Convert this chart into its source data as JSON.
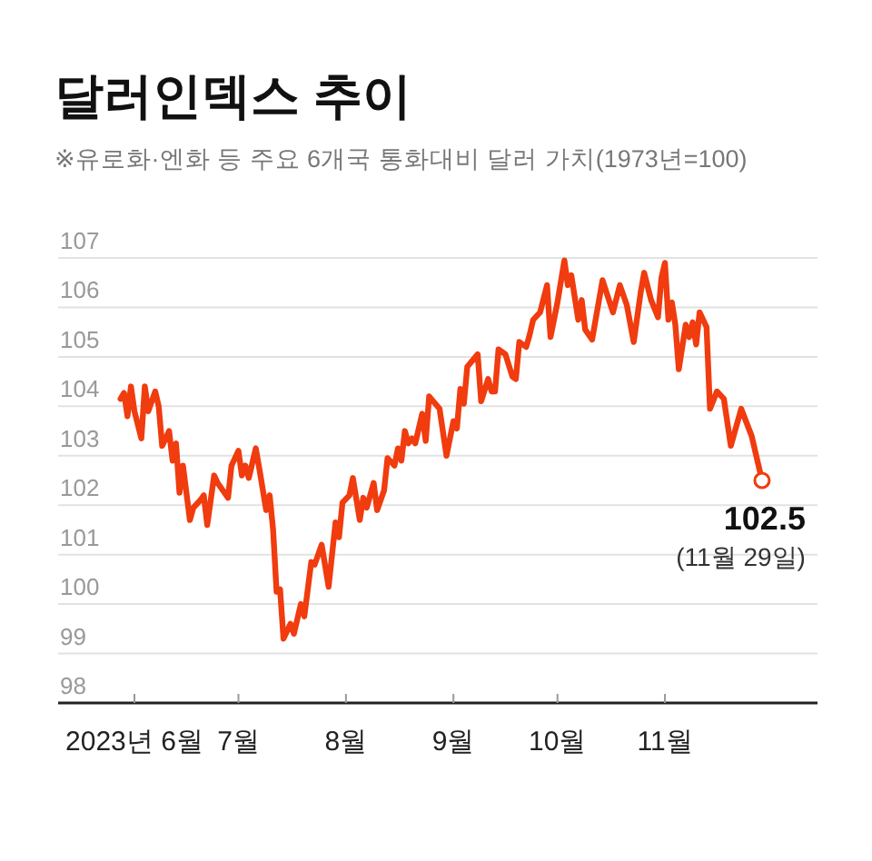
{
  "chart_data": {
    "type": "line",
    "title": "달러인덱스 추이",
    "subtitle": "※유로화·엔화 등 주요 6개국 통화대비 달러 가치(1973년=100)",
    "x": [
      "2023-05-28",
      "2023-05-29",
      "2023-05-30",
      "2023-05-31",
      "2023-06-01",
      "2023-06-03",
      "2023-06-04",
      "2023-06-05",
      "2023-06-07",
      "2023-06-08",
      "2023-06-09",
      "2023-06-11",
      "2023-06-12",
      "2023-06-13",
      "2023-06-14",
      "2023-06-15",
      "2023-06-17",
      "2023-06-18",
      "2023-06-20",
      "2023-06-21",
      "2023-06-22",
      "2023-06-24",
      "2023-06-25",
      "2023-06-28",
      "2023-06-29",
      "2023-07-01",
      "2023-07-02",
      "2023-07-03",
      "2023-07-04",
      "2023-07-06",
      "2023-07-07",
      "2023-07-09",
      "2023-07-10",
      "2023-07-11",
      "2023-07-12",
      "2023-07-13",
      "2023-07-14",
      "2023-07-16",
      "2023-07-17",
      "2023-07-19",
      "2023-07-20",
      "2023-07-22",
      "2023-07-23",
      "2023-07-25",
      "2023-07-27",
      "2023-07-29",
      "2023-07-30",
      "2023-07-31",
      "2023-08-02",
      "2023-08-03",
      "2023-08-05",
      "2023-08-06",
      "2023-08-07",
      "2023-08-09",
      "2023-08-10",
      "2023-08-12",
      "2023-08-13",
      "2023-08-15",
      "2023-08-16",
      "2023-08-17",
      "2023-08-18",
      "2023-08-19",
      "2023-08-20",
      "2023-08-21",
      "2023-08-23",
      "2023-08-24",
      "2023-08-25",
      "2023-08-28",
      "2023-08-30",
      "2023-09-01",
      "2023-09-02",
      "2023-09-03",
      "2023-09-04",
      "2023-09-05",
      "2023-09-08",
      "2023-09-09",
      "2023-09-11",
      "2023-09-12",
      "2023-09-13",
      "2023-09-14",
      "2023-09-16",
      "2023-09-18",
      "2023-09-19",
      "2023-09-20",
      "2023-09-22",
      "2023-09-23",
      "2023-09-24",
      "2023-09-26",
      "2023-09-28",
      "2023-09-29",
      "2023-10-01",
      "2023-10-03",
      "2023-10-04",
      "2023-10-05",
      "2023-10-07",
      "2023-10-08",
      "2023-10-09",
      "2023-10-11",
      "2023-10-14",
      "2023-10-17",
      "2023-10-19",
      "2023-10-21",
      "2023-10-23",
      "2023-10-25",
      "2023-10-26",
      "2023-10-28",
      "2023-10-30",
      "2023-10-31",
      "2023-11-01",
      "2023-11-02",
      "2023-11-03",
      "2023-11-04",
      "2023-11-05",
      "2023-11-07",
      "2023-11-08",
      "2023-11-09",
      "2023-11-10",
      "2023-11-11",
      "2023-11-13",
      "2023-11-14",
      "2023-11-16",
      "2023-11-18",
      "2023-11-20",
      "2023-11-23",
      "2023-11-26",
      "2023-11-29"
    ],
    "series": [
      {
        "color": "#f03c0f",
        "values": [
          104.15,
          104.27,
          103.8,
          104.4,
          103.9,
          103.35,
          104.4,
          103.9,
          104.3,
          104.0,
          103.2,
          103.5,
          102.9,
          103.25,
          102.25,
          102.8,
          101.7,
          101.95,
          102.1,
          102.2,
          101.6,
          102.6,
          102.45,
          102.15,
          102.8,
          103.1,
          102.6,
          102.8,
          102.55,
          103.15,
          102.75,
          101.9,
          102.2,
          101.5,
          100.25,
          100.3,
          99.3,
          99.6,
          99.4,
          100.0,
          99.75,
          100.85,
          100.8,
          101.2,
          100.35,
          101.65,
          101.35,
          102.05,
          102.2,
          102.55,
          101.7,
          102.15,
          101.95,
          102.45,
          101.9,
          102.3,
          102.95,
          102.8,
          103.15,
          102.9,
          103.5,
          103.25,
          103.35,
          103.25,
          103.85,
          103.3,
          104.2,
          103.95,
          103.0,
          103.7,
          103.55,
          104.35,
          104.05,
          104.8,
          105.05,
          104.1,
          104.55,
          104.3,
          104.3,
          105.15,
          105.05,
          104.6,
          104.55,
          105.3,
          105.2,
          105.45,
          105.75,
          105.9,
          106.45,
          105.4,
          106.1,
          106.95,
          106.45,
          106.65,
          105.75,
          106.15,
          105.55,
          105.35,
          106.55,
          105.9,
          106.45,
          106.05,
          105.3,
          106.3,
          106.7,
          106.15,
          105.8,
          106.6,
          106.9,
          105.75,
          106.1,
          105.65,
          104.75,
          105.65,
          105.4,
          105.7,
          105.25,
          105.9,
          105.6,
          103.95,
          104.3,
          104.15,
          103.2,
          103.95,
          103.4,
          102.5
        ]
      },
      {
        "type": "scatter",
        "color": "#f03c0f",
        "marker": "circle",
        "x": [
          "2023-11-29"
        ],
        "values": [
          102.5
        ]
      }
    ],
    "xlim": [
      "2023-05-10",
      "2023-12-15"
    ],
    "xticks": [
      {
        "value": "2023-06-01",
        "label": "2023년 6월"
      },
      {
        "value": "2023-07-01",
        "label": "7월"
      },
      {
        "value": "2023-08-01",
        "label": "8월"
      },
      {
        "value": "2023-09-01",
        "label": "9월"
      },
      {
        "value": "2023-10-01",
        "label": "10월"
      },
      {
        "value": "2023-11-01",
        "label": "11월"
      }
    ],
    "ylim": [
      98,
      107
    ],
    "yticks": [
      98,
      99,
      100,
      101,
      102,
      103,
      104,
      105,
      106,
      107
    ],
    "grid": "y",
    "annotations": [
      {
        "text": "102.5",
        "x": "2023-11-29",
        "y": 102.5
      },
      {
        "text": "(11월 29일)",
        "x": "2023-11-29",
        "y": 102.5
      }
    ]
  }
}
